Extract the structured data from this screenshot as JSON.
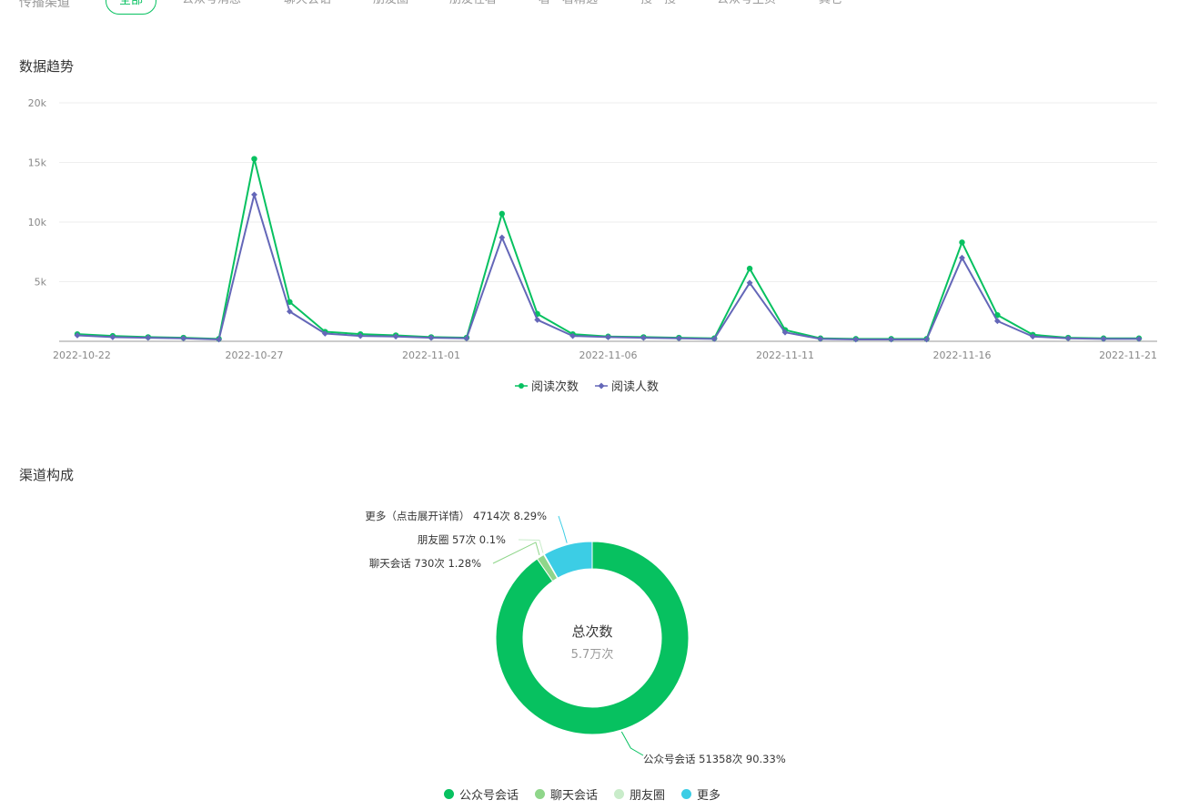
{
  "filters": {
    "label": "传播渠道",
    "options": [
      "全部",
      "公众号消息",
      "聊天会话",
      "朋友圈",
      "朋友在看",
      "看一看精选",
      "搜一搜",
      "公众号主页",
      "其它"
    ],
    "active_index": 0
  },
  "trend": {
    "title": "数据趋势"
  },
  "composition": {
    "title": "渠道构成"
  },
  "chart_data": [
    {
      "type": "line",
      "title": "数据趋势",
      "x": [
        "2022-10-22",
        "2022-10-23",
        "2022-10-24",
        "2022-10-25",
        "2022-10-26",
        "2022-10-27",
        "2022-10-28",
        "2022-10-29",
        "2022-10-30",
        "2022-10-31",
        "2022-11-01",
        "2022-11-02",
        "2022-11-03",
        "2022-11-04",
        "2022-11-05",
        "2022-11-06",
        "2022-11-07",
        "2022-11-08",
        "2022-11-09",
        "2022-11-10",
        "2022-11-11",
        "2022-11-12",
        "2022-11-13",
        "2022-11-14",
        "2022-11-15",
        "2022-11-16",
        "2022-11-17",
        "2022-11-18",
        "2022-11-19",
        "2022-11-20",
        "2022-11-21"
      ],
      "x_tick_labels": [
        "2022-10-22",
        "2022-10-27",
        "2022-11-01",
        "2022-11-06",
        "2022-11-11",
        "2022-11-16",
        "2022-11-21"
      ],
      "y_tick_labels": [
        "5k",
        "10k",
        "15k",
        "20k"
      ],
      "ylim": [
        0,
        20000
      ],
      "grid": true,
      "legend_position": "bottom",
      "series": [
        {
          "name": "阅读次数",
          "color": "#07c160",
          "marker": "circle",
          "values": [
            600,
            450,
            350,
            300,
            200,
            15300,
            3300,
            800,
            600,
            500,
            350,
            300,
            10700,
            2300,
            600,
            400,
            350,
            300,
            250,
            6100,
            950,
            250,
            200,
            200,
            200,
            8300,
            2200,
            550,
            300,
            250,
            250
          ]
        },
        {
          "name": "阅读人数",
          "color": "#6467b8",
          "marker": "diamond",
          "values": [
            500,
            350,
            300,
            250,
            150,
            12300,
            2500,
            650,
            450,
            400,
            300,
            250,
            8700,
            1800,
            450,
            350,
            300,
            250,
            200,
            4900,
            750,
            200,
            150,
            150,
            150,
            7000,
            1700,
            400,
            250,
            200,
            200
          ]
        }
      ]
    },
    {
      "type": "pie",
      "title": "渠道构成",
      "center_title": "总次数",
      "center_value": "5.7万次",
      "legend_position": "bottom",
      "slices": [
        {
          "name": "公众号会话",
          "value": 51358,
          "label": "公众号会话 51358次 90.33%",
          "color": "#07c160"
        },
        {
          "name": "聊天会话",
          "value": 730,
          "label": "聊天会话 730次 1.28%",
          "color": "#8fd68a"
        },
        {
          "name": "朋友圈",
          "value": 57,
          "label": "朋友圈 57次 0.1%",
          "color": "#c9ecca"
        },
        {
          "name": "更多",
          "value": 4714,
          "label": "更多（点击展开详情） 4714次 8.29%",
          "color": "#3ccde5"
        }
      ]
    }
  ]
}
